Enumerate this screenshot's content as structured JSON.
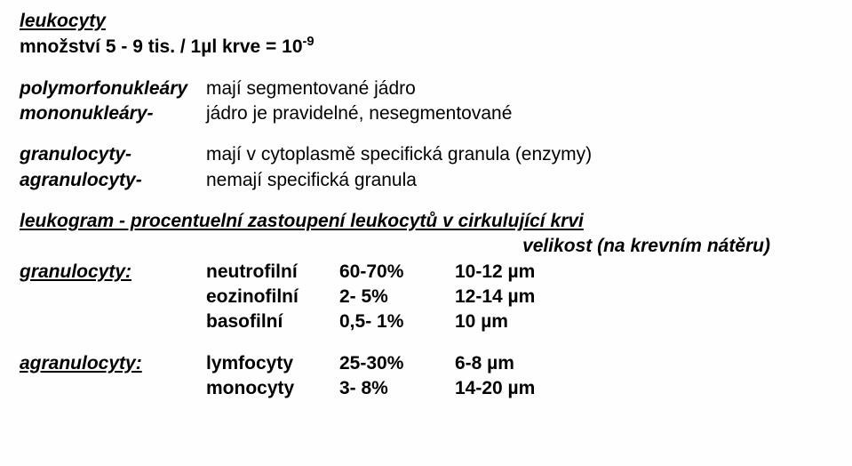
{
  "header": {
    "title": "leukocyty",
    "subtitle_pre": "množství  5 - 9 tis. / 1µl krve = 10",
    "subtitle_sup": "-9"
  },
  "defs1": [
    {
      "term": "polymorfonukleáry",
      "desc": "mají segmentované jádro"
    },
    {
      "term": "mononukleáry-",
      "desc": "jádro je pravidelné, nesegmentované"
    }
  ],
  "defs2": [
    {
      "term": "granulocyty-",
      "desc": "mají v cytoplasmě specifická granula (enzymy)"
    },
    {
      "term": "agranulocyty-",
      "desc": "nemají specifická granula"
    }
  ],
  "leuko_header": {
    "line": "leukogram - procentuelní zastoupení  leukocytů v cirkulující krvi",
    "right": "velikost (na krevním nátěru)"
  },
  "granulo": {
    "label": "granulocyty:",
    "rows": [
      {
        "type": "neutrofilní",
        "pct": "60-70%",
        "size": "10-12 µm"
      },
      {
        "type": "eozinofilní",
        "pct": "2- 5%",
        "size": "12-14 µm"
      },
      {
        "type": "basofilní",
        "pct": "0,5- 1%",
        "size": "10 µm"
      }
    ]
  },
  "agranulo": {
    "label": "agranulocyty:",
    "rows": [
      {
        "type": "lymfocyty",
        "pct": "25-30%",
        "size": "6-8 µm"
      },
      {
        "type": "monocyty",
        "pct": "3-  8%",
        "size": "14-20 µm"
      }
    ]
  }
}
